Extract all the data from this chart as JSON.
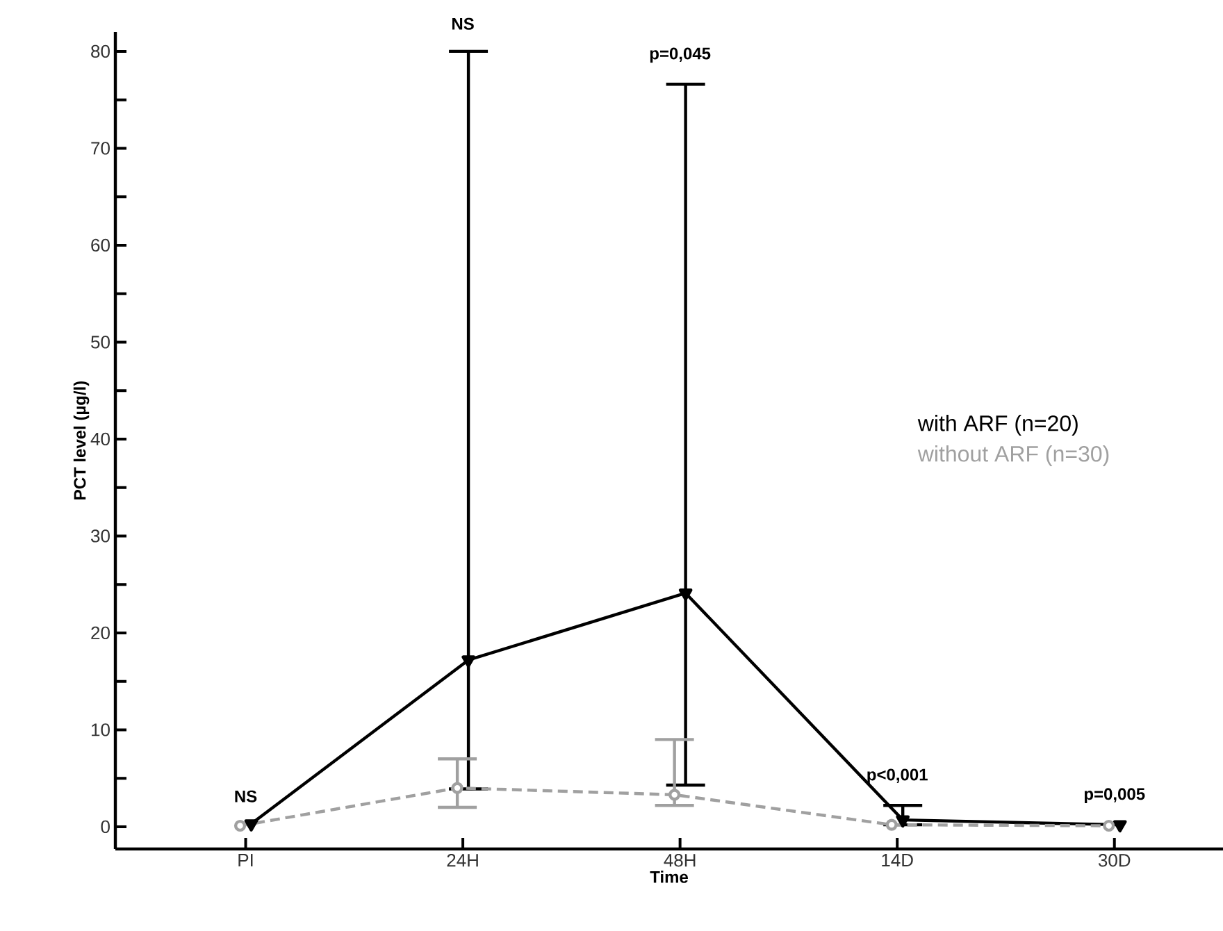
{
  "chart_data": {
    "type": "line",
    "xlabel": "Time",
    "ylabel": "PCT level (µg/l)",
    "categories": [
      "PI",
      "24H",
      "48H",
      "14D",
      "30D"
    ],
    "ylim": [
      -2.3,
      82
    ],
    "yticks": [
      0,
      {
        "value": 5,
        "label": null
      },
      10,
      {
        "value": 15,
        "label": null
      },
      20,
      {
        "value": 25,
        "label": null
      },
      30,
      {
        "value": 35,
        "label": null
      },
      40,
      {
        "value": 45,
        "label": null
      },
      50,
      {
        "value": 55,
        "label": null
      },
      60,
      {
        "value": 65,
        "label": null
      },
      70,
      {
        "value": 75,
        "label": null
      },
      80
    ],
    "legend": "right",
    "grid": false,
    "series": [
      {
        "name": "with ARF (n=20)",
        "color": "#000000",
        "marker": "triangle",
        "line_style": "solid",
        "values": [
          0.3,
          17.2,
          24.1,
          0.7,
          0.2
        ],
        "errors": [
          null,
          [
            3.9,
            80
          ],
          [
            4.3,
            76.6
          ],
          [
            0.2,
            2.2
          ],
          null
        ]
      },
      {
        "name": "without ARF (n=30)",
        "color": "#a0a0a0",
        "marker": "circle",
        "line_style": "dashed",
        "values": [
          0.1,
          4.0,
          3.3,
          0.2,
          0.1
        ],
        "errors": [
          null,
          [
            2.0,
            7.0
          ],
          [
            2.2,
            9.0
          ],
          null,
          null
        ]
      }
    ],
    "annotations": [
      "NS",
      "NS",
      "p=0,045",
      "p<0,001",
      "p=0,005"
    ]
  }
}
